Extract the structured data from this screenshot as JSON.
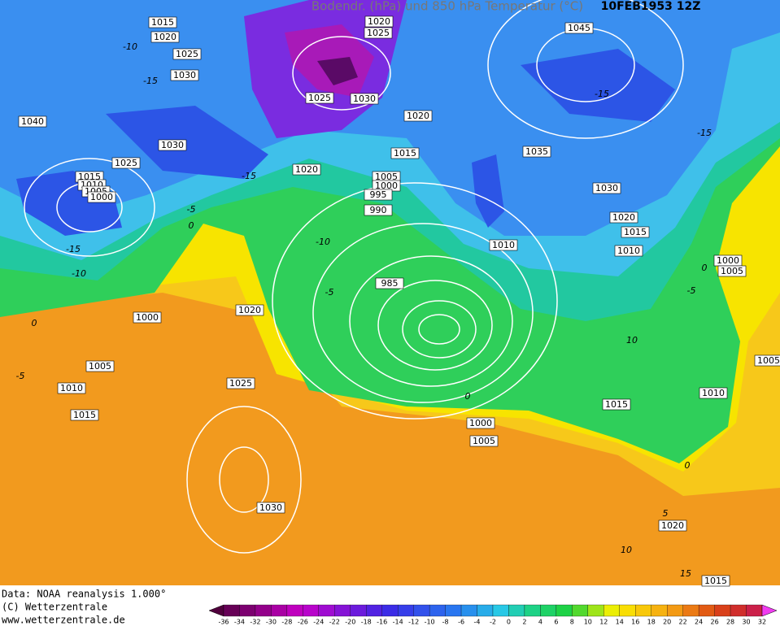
{
  "header": {
    "title": "Bodendr. (hPa) und 850 hPa Temperatur (°C)",
    "date": "10FEB1953 12Z"
  },
  "isobar_labels": [
    "1015",
    "1020",
    "1020",
    "1025",
    "1025",
    "1030",
    "1040",
    "1025",
    "1030",
    "1030",
    "1025",
    "1020",
    "1015",
    "1020",
    "1045",
    "1035",
    "1015",
    "1010",
    "1005",
    "1000",
    "1005",
    "1000",
    "995",
    "990",
    "1010",
    "985",
    "1030",
    "1020",
    "1015",
    "1010",
    "1000",
    "1005",
    "1000",
    "1020",
    "1005",
    "1010",
    "1015",
    "1025",
    "1000",
    "1005",
    "1015",
    "1010",
    "1005",
    "1030",
    "1020",
    "1015"
  ],
  "temperature_labels": [
    "-10",
    "-15",
    "-15",
    "-15",
    "-15",
    "-5",
    "0",
    "-15",
    "-10",
    "-10",
    "-5",
    "0",
    "-5",
    "0",
    "0",
    "-5",
    "10",
    "0",
    "5",
    "10",
    "15"
  ],
  "footer": [
    "Data: NOAA reanalysis 1.000°",
    "(C) Wetterzentrale",
    "www.wetterzentrale.de"
  ],
  "colorbar": {
    "ticks": [
      -36,
      -34,
      -32,
      -30,
      -28,
      -26,
      -24,
      -22,
      -20,
      -18,
      -16,
      -14,
      -12,
      -10,
      -8,
      -6,
      -4,
      -2,
      0,
      2,
      4,
      6,
      8,
      10,
      12,
      14,
      16,
      18,
      20,
      22,
      24,
      26,
      28,
      30,
      32
    ]
  }
}
